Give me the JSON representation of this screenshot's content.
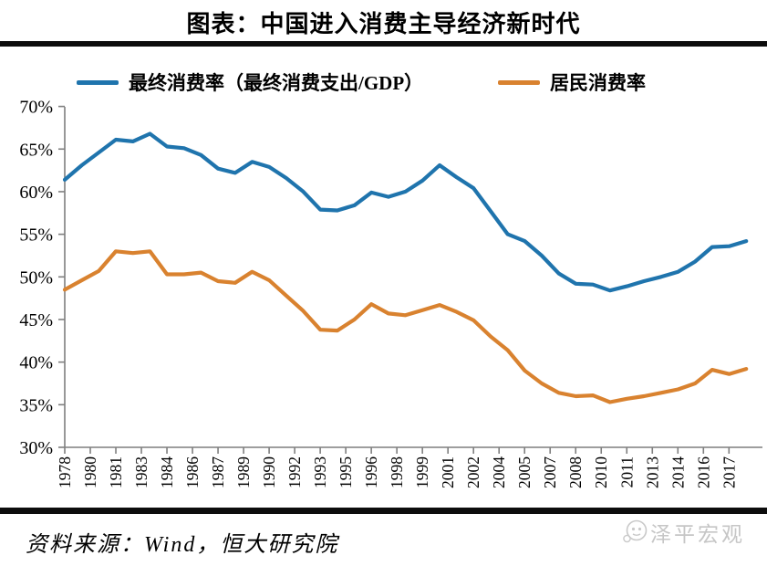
{
  "title": "图表：中国进入消费主导经济新时代",
  "legend": [
    {
      "label": "最终消费率（最终消费支出/GDP）",
      "color": "#1f74ad"
    },
    {
      "label": "居民消费率",
      "color": "#d9822f"
    }
  ],
  "source": "资料来源：Wind，恒大研究院",
  "watermark": "泽平宏观",
  "chart_data": {
    "type": "line",
    "title": "图表：中国进入消费主导经济新时代",
    "x": [
      1978,
      1979,
      1980,
      1981,
      1982,
      1983,
      1984,
      1985,
      1986,
      1987,
      1988,
      1989,
      1990,
      1991,
      1992,
      1993,
      1994,
      1995,
      1996,
      1997,
      1998,
      1999,
      2000,
      2001,
      2002,
      2003,
      2004,
      2005,
      2006,
      2007,
      2008,
      2009,
      2010,
      2011,
      2012,
      2013,
      2014,
      2015,
      2016,
      2017,
      2018
    ],
    "series": [
      {
        "name": "最终消费率（最终消费支出/GDP）",
        "color": "#1f74ad",
        "values": [
          61.4,
          63.1,
          64.6,
          66.1,
          65.9,
          66.8,
          65.3,
          65.1,
          64.3,
          62.7,
          62.2,
          63.5,
          62.9,
          61.6,
          60.0,
          57.9,
          57.8,
          58.4,
          59.9,
          59.4,
          60.0,
          61.3,
          63.1,
          61.7,
          60.4,
          57.7,
          55.0,
          54.2,
          52.5,
          50.4,
          49.2,
          49.1,
          48.4,
          48.9,
          49.5,
          50.0,
          50.6,
          51.8,
          53.5,
          53.6,
          54.2
        ]
      },
      {
        "name": "居民消费率",
        "color": "#d9822f",
        "values": [
          48.5,
          49.6,
          50.7,
          53.0,
          52.8,
          53.0,
          50.3,
          50.3,
          50.5,
          49.5,
          49.3,
          50.6,
          49.6,
          47.8,
          46.0,
          43.8,
          43.7,
          45.0,
          46.8,
          45.7,
          45.5,
          46.1,
          46.7,
          45.9,
          44.9,
          43.0,
          41.4,
          39.0,
          37.5,
          36.4,
          36.0,
          36.1,
          35.3,
          35.7,
          36.0,
          36.4,
          36.8,
          37.5,
          39.1,
          38.6,
          39.2
        ]
      }
    ],
    "x_tick_labels": [
      "1978",
      "1980",
      "1981",
      "1983",
      "1984",
      "1986",
      "1987",
      "1989",
      "1990",
      "1992",
      "1993",
      "1995",
      "1996",
      "1998",
      "1999",
      "2001",
      "2002",
      "2004",
      "2005",
      "2007",
      "2008",
      "2010",
      "2011",
      "2013",
      "2014",
      "2016",
      "2017"
    ],
    "y_tick_labels": [
      "70%",
      "65%",
      "60%",
      "55%",
      "50%",
      "45%",
      "40%",
      "35%",
      "30%"
    ],
    "ylim": [
      30,
      70
    ],
    "grid": false,
    "legend_position": "top"
  }
}
